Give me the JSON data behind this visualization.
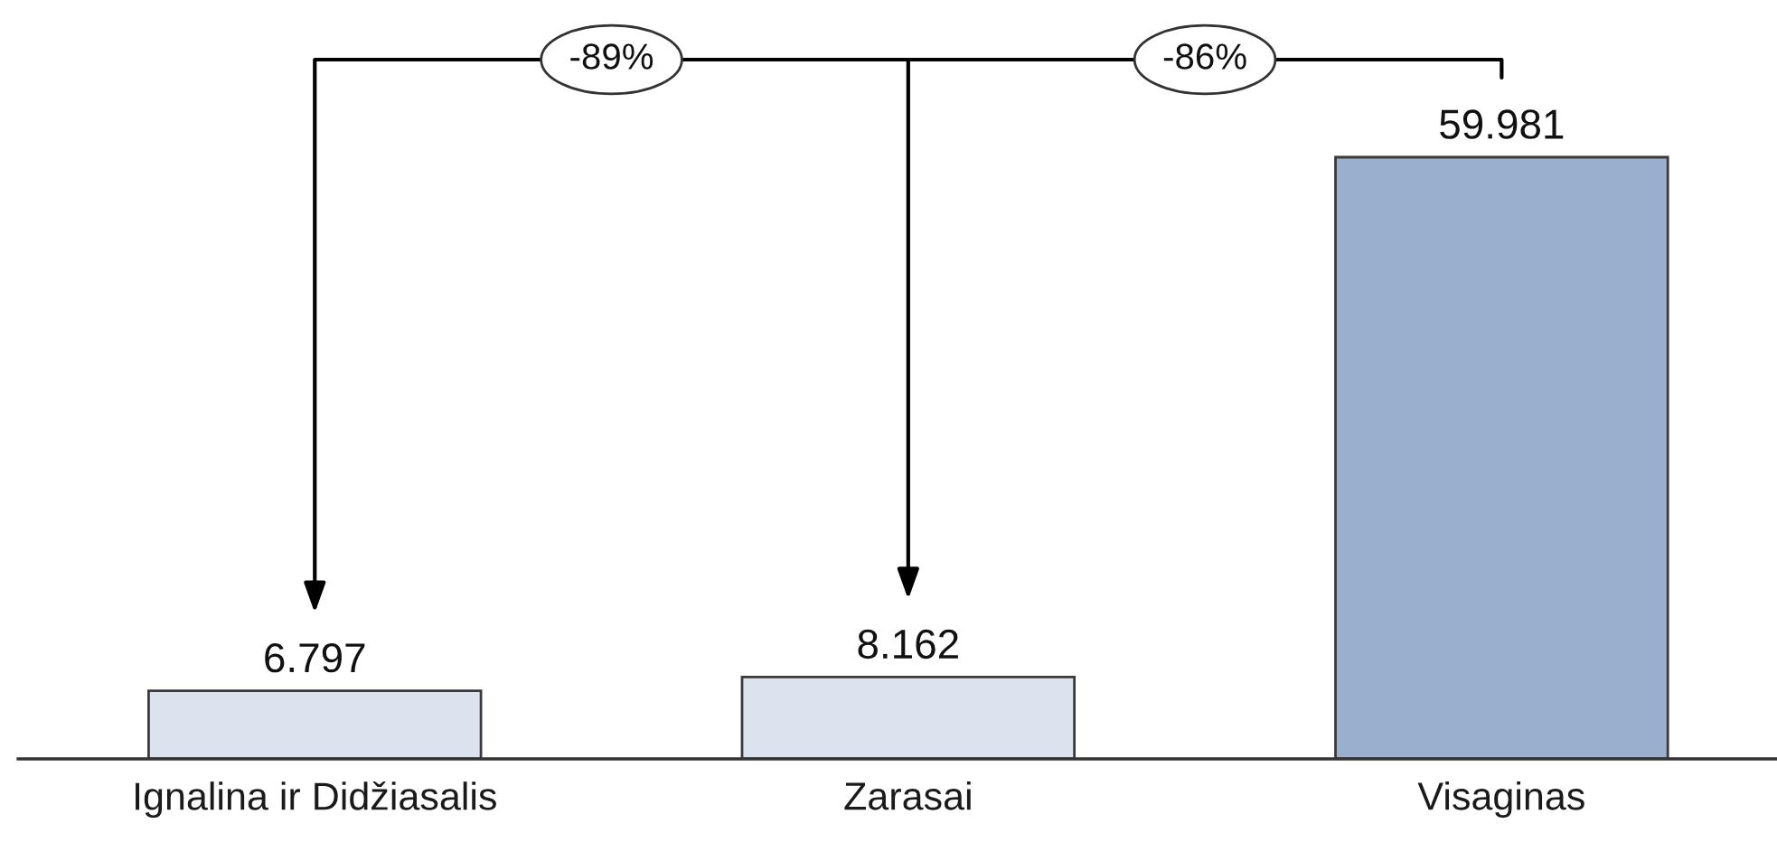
{
  "chart_data": {
    "type": "bar",
    "categories": [
      "Ignalina ir Didžiasalis",
      "Zarasai",
      "Visaginas"
    ],
    "values": [
      6.797,
      8.162,
      59.981
    ],
    "colors": [
      "#dce3ef",
      "#dce3ef",
      "#9aafcd"
    ],
    "data_labels": true,
    "tick_labels": "x",
    "annotations": [
      "-89%",
      "-86%"
    ]
  }
}
